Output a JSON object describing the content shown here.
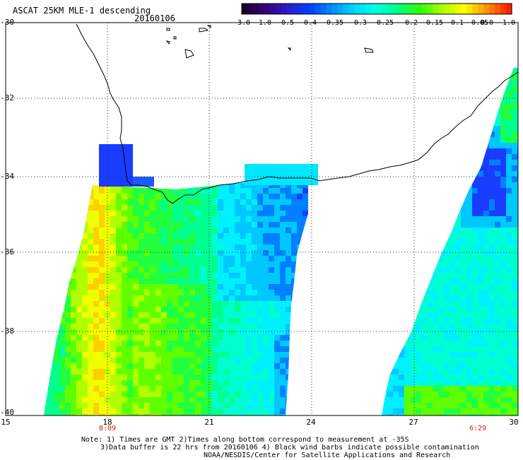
{
  "header": {
    "title": "ASCAT 25KM MLE-1 descending",
    "date": "20160106"
  },
  "colorbar": {
    "labels": [
      "-3.0",
      "-1.0",
      "-0.5",
      "-0.4",
      "-0.35",
      "-0.3",
      "-0.25",
      "-0.2",
      "-0.15",
      "-0.1",
      "-0.05",
      "0.0",
      "1.0"
    ],
    "colors": [
      "#1a0030",
      "#3a007a",
      "#2a1fd0",
      "#0040ff",
      "#0090ff",
      "#00d8ff",
      "#00ffe0",
      "#00ff80",
      "#30ff00",
      "#b0ff00",
      "#ffff00",
      "#ff9000",
      "#ff2000"
    ]
  },
  "axes": {
    "lat_labels": [
      "-30",
      "-32",
      "-34",
      "-36",
      "-38",
      "-40"
    ],
    "lon_labels": [
      "15",
      "18",
      "21",
      "24",
      "27",
      "30"
    ],
    "lat_range": [
      -40,
      -30
    ],
    "lon_range": [
      15,
      30
    ]
  },
  "time_labels": [
    {
      "text": "8:09",
      "lon": 18
    },
    {
      "text": "6:29",
      "lon": 29.2
    }
  ],
  "notes": [
    "Note: 1) Times are GMT 2)Times along bottom correspond to measurement at -35S",
    "3)Data buffer is 22 hrs from 20160106 4) Black wind barbs indicate possible contamination",
    "NOAA/NESDIS/Center for Satellite Applications and Research"
  ]
}
